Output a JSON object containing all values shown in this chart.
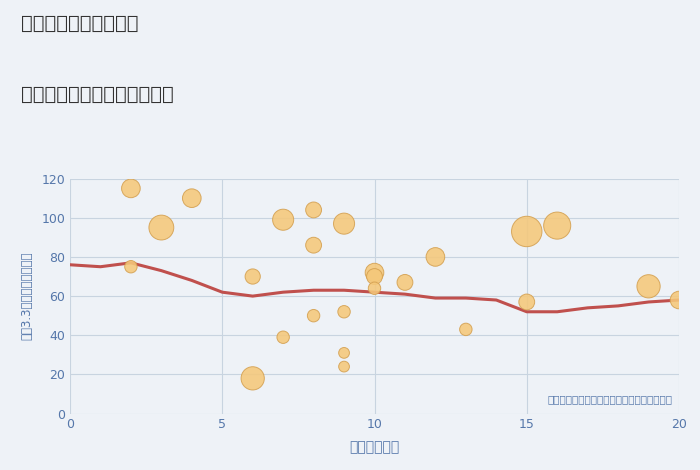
{
  "title_line1": "三重県伊賀市一之宮の",
  "title_line2": "駅距離別中古マンション価格",
  "xlabel": "駅距離（分）",
  "ylabel": "坪（3.3㎡）単価（万円）",
  "annotation": "円の大きさは、取引のあった物件面積を示す",
  "bg_color": "#eef2f7",
  "plot_bg_color": "#eef2f7",
  "scatter_color": "#f5c87a",
  "scatter_edge_color": "#d4a050",
  "line_color": "#c0504d",
  "grid_color": "#c8d4e0",
  "title_color": "#333333",
  "annotation_color": "#5577aa",
  "axis_color": "#5577aa",
  "tick_color": "#5577aa",
  "xlim": [
    0,
    20
  ],
  "ylim": [
    0,
    120
  ],
  "xticks": [
    0,
    5,
    10,
    15,
    20
  ],
  "yticks": [
    0,
    20,
    40,
    60,
    80,
    100,
    120
  ],
  "scatter_x": [
    2,
    2,
    3,
    4,
    6,
    6,
    7,
    7,
    8,
    8,
    8,
    9,
    9,
    9,
    9,
    10,
    10,
    10,
    11,
    12,
    13,
    15,
    15,
    16,
    19,
    20
  ],
  "scatter_y": [
    115,
    75,
    95,
    110,
    18,
    70,
    39,
    99,
    104,
    86,
    50,
    31,
    24,
    97,
    52,
    72,
    70,
    64,
    67,
    80,
    43,
    93,
    57,
    96,
    65,
    58
  ],
  "scatter_s": [
    180,
    80,
    320,
    180,
    280,
    120,
    80,
    230,
    130,
    130,
    80,
    60,
    60,
    230,
    80,
    180,
    130,
    80,
    130,
    180,
    80,
    480,
    130,
    380,
    280,
    160
  ],
  "line_x": [
    0,
    1,
    2,
    3,
    4,
    5,
    6,
    7,
    8,
    9,
    10,
    11,
    12,
    13,
    14,
    15,
    16,
    17,
    18,
    19,
    20
  ],
  "line_y": [
    76,
    75,
    77,
    73,
    68,
    62,
    60,
    62,
    63,
    63,
    62,
    61,
    59,
    59,
    58,
    52,
    52,
    54,
    55,
    57,
    58
  ]
}
